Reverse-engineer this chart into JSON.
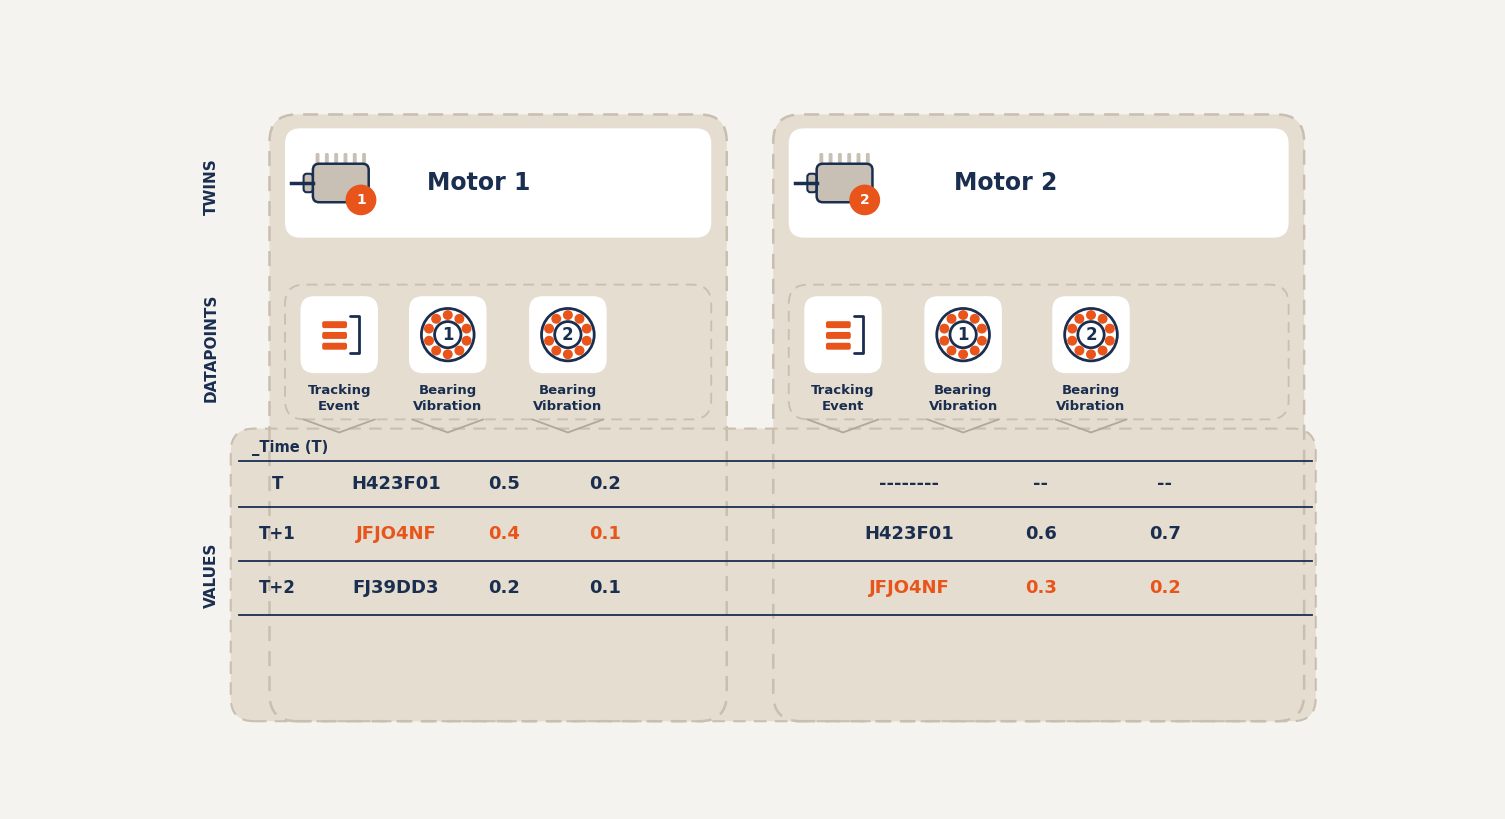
{
  "bg_color": "#f5f3ef",
  "panel_bg": "#e5ddd0",
  "white_box": "#ffffff",
  "orange": "#e8541a",
  "navy": "#1a2e50",
  "dashed_border": "#c8bfb0",
  "label_left_twins": "TWINS",
  "label_left_datapoints": "DATAPOINTS",
  "label_left_values": "VALUES",
  "motor1_label": "Motor 1",
  "motor2_label": "Motor 2",
  "dp_labels": [
    "Tracking\nEvent",
    "Bearing\nVibration",
    "Bearing\nVibration"
  ],
  "time_col_header": "_Time (T)",
  "row_times": [
    "T",
    "T+1",
    "T+2"
  ],
  "motor1_rows": [
    [
      "H423F01",
      "0.5",
      "0.2"
    ],
    [
      "JFJO4NF",
      "0.4",
      "0.1"
    ],
    [
      "FJ39DD3",
      "0.2",
      "0.1"
    ]
  ],
  "motor2_rows": [
    [
      "--------",
      "--",
      "--"
    ],
    [
      "H423F01",
      "0.6",
      "0.7"
    ],
    [
      "JFJO4NF",
      "0.3",
      "0.2"
    ]
  ],
  "orange_m1": [
    [
      1,
      0
    ],
    [
      1,
      1
    ],
    [
      1,
      2
    ]
  ],
  "orange_m2": [
    [
      2,
      0
    ],
    [
      2,
      1
    ],
    [
      2,
      2
    ]
  ]
}
